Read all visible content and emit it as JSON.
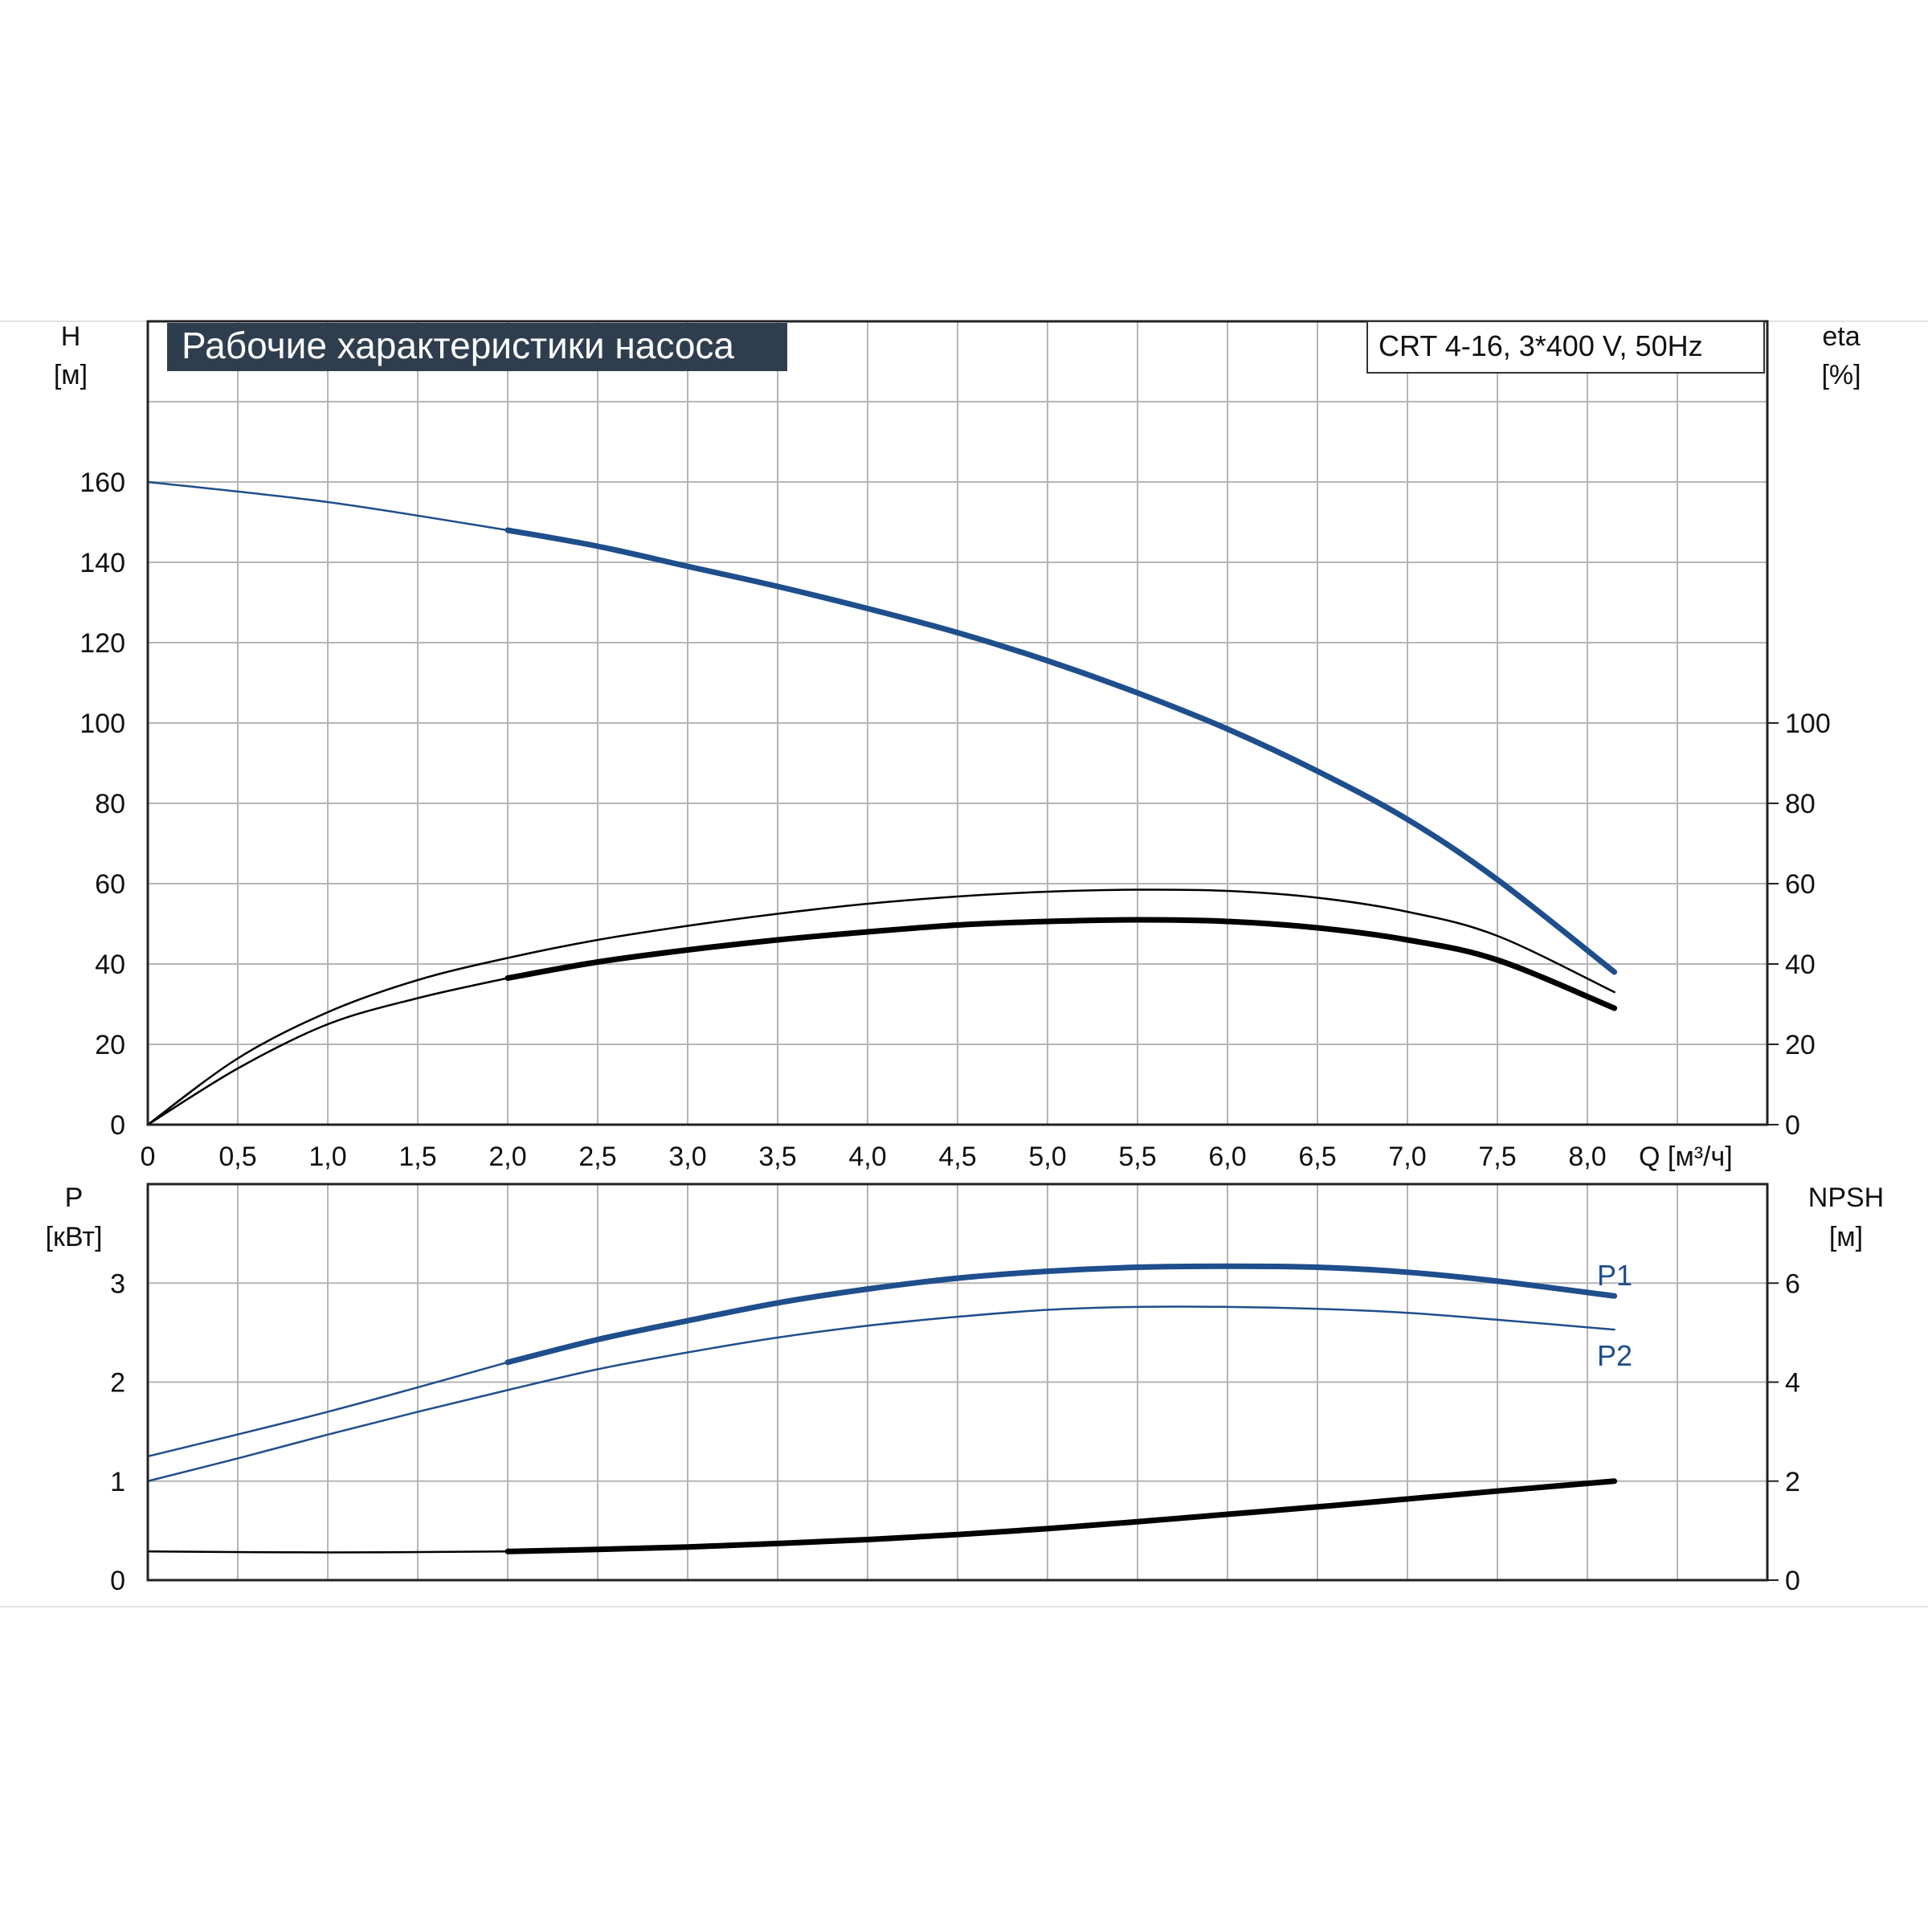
{
  "title": "Рабочие характеристики насоса",
  "model": "CRT 4-16, 3*400 V, 50Hz",
  "colors": {
    "accent": "#1f4e8c",
    "black": "#000000",
    "grid": "#b5b5b5",
    "title_bg": "#2f3e4e"
  },
  "chart_data": [
    {
      "type": "line",
      "panel": "top",
      "xlabel": "Q [м³/ч]",
      "ylabel_left": {
        "name": "H",
        "unit": "[м]"
      },
      "ylabel_right": {
        "name": "eta",
        "unit": "[%]"
      },
      "x_ticks": [
        "0",
        "0,5",
        "1,0",
        "1,5",
        "2,0",
        "2,5",
        "3,0",
        "3,5",
        "4,0",
        "4,5",
        "5,0",
        "5,5",
        "6,0",
        "6,5",
        "7,0",
        "7,5",
        "8,0"
      ],
      "xlim": [
        0,
        9
      ],
      "ylim_left": [
        0,
        200
      ],
      "y_ticks_left": [
        0,
        20,
        40,
        60,
        80,
        100,
        120,
        140,
        160
      ],
      "ylim_right": [
        0,
        200
      ],
      "y_ticks_right": [
        0,
        20,
        40,
        60,
        80,
        100
      ],
      "grid": true,
      "series": [
        {
          "axis": "left",
          "color": "#1f4e8c",
          "segments": [
            {
              "style": "thin",
              "x": [
                0,
                1,
                2
              ],
              "y": [
                160,
                155,
                148
              ]
            },
            {
              "style": "thick",
              "x": [
                2,
                2.5,
                3,
                3.5,
                4,
                4.5,
                5,
                5.5,
                6,
                6.5,
                7,
                7.5,
                8.15
              ],
              "y": [
                148,
                144,
                139,
                134,
                128.5,
                122.5,
                115.5,
                107.5,
                98.5,
                88,
                76,
                61,
                38
              ]
            }
          ]
        },
        {
          "axis": "right",
          "color": "#000000",
          "segments": [
            {
              "style": "thin",
              "x": [
                0,
                0.5,
                1,
                1.5,
                2,
                2.5,
                3,
                3.5,
                4,
                4.5,
                5,
                5.5,
                6,
                6.5,
                7,
                7.5,
                8.15
              ],
              "y": [
                0,
                16.5,
                28,
                36,
                41.5,
                46,
                49.5,
                52.5,
                55,
                56.8,
                58,
                58.5,
                58.2,
                56.5,
                53,
                47,
                33
              ]
            }
          ]
        },
        {
          "axis": "right",
          "color": "#000000",
          "segments": [
            {
              "style": "thin",
              "x": [
                0,
                0.5,
                1,
                1.5,
                2
              ],
              "y": [
                0,
                14,
                25,
                31.5,
                36.5
              ]
            },
            {
              "style": "thick",
              "x": [
                2,
                2.5,
                3,
                3.5,
                4,
                4.5,
                5,
                5.5,
                6,
                6.5,
                7,
                7.5,
                8.15
              ],
              "y": [
                36.5,
                40.5,
                43.5,
                46,
                48,
                49.7,
                50.6,
                51,
                50.6,
                49,
                46,
                41,
                29
              ]
            }
          ]
        }
      ]
    },
    {
      "type": "line",
      "panel": "bottom",
      "ylabel_left": {
        "name": "P",
        "unit": "[кВт]"
      },
      "ylabel_right": {
        "name": "NPSH",
        "unit": "[м]"
      },
      "xlim": [
        0,
        9
      ],
      "ylim_left": [
        0,
        4
      ],
      "y_ticks_left": [
        0,
        1,
        2,
        3
      ],
      "ylim_right": [
        0,
        8
      ],
      "y_ticks_right": [
        0,
        2,
        4,
        6
      ],
      "grid": true,
      "series": [
        {
          "name": "P1",
          "axis": "left",
          "color": "#1f4e8c",
          "segments": [
            {
              "style": "thin",
              "x": [
                0,
                1,
                2
              ],
              "y": [
                1.25,
                1.7,
                2.2
              ]
            },
            {
              "style": "thick",
              "x": [
                2,
                2.5,
                3,
                3.5,
                4,
                4.5,
                5,
                5.5,
                6,
                6.5,
                7,
                7.5,
                8.15
              ],
              "y": [
                2.2,
                2.43,
                2.62,
                2.8,
                2.94,
                3.05,
                3.12,
                3.16,
                3.17,
                3.16,
                3.11,
                3.02,
                2.87
              ]
            }
          ]
        },
        {
          "name": "P2",
          "axis": "left",
          "color": "#1f4e8c",
          "segments": [
            {
              "style": "thin",
              "x": [
                0,
                0.5,
                1,
                1.5,
                2,
                2.5,
                3,
                3.5,
                4,
                4.5,
                5,
                5.5,
                6,
                6.5,
                7,
                7.5,
                8.15
              ],
              "y": [
                1.0,
                1.23,
                1.47,
                1.7,
                1.92,
                2.13,
                2.3,
                2.45,
                2.57,
                2.66,
                2.73,
                2.76,
                2.76,
                2.74,
                2.7,
                2.63,
                2.53
              ]
            }
          ]
        },
        {
          "name": "",
          "axis": "right",
          "color": "#000000",
          "segments": [
            {
              "style": "thin",
              "x": [
                0,
                1,
                2
              ],
              "y": [
                0.58,
                0.56,
                0.58
              ]
            },
            {
              "style": "thick",
              "x": [
                2,
                2.5,
                3,
                3.5,
                4,
                4.5,
                5,
                5.5,
                6,
                6.5,
                7,
                7.5,
                8.15
              ],
              "y": [
                0.58,
                0.62,
                0.67,
                0.74,
                0.82,
                0.92,
                1.04,
                1.18,
                1.33,
                1.48,
                1.64,
                1.8,
                2.0
              ]
            }
          ]
        }
      ]
    }
  ]
}
